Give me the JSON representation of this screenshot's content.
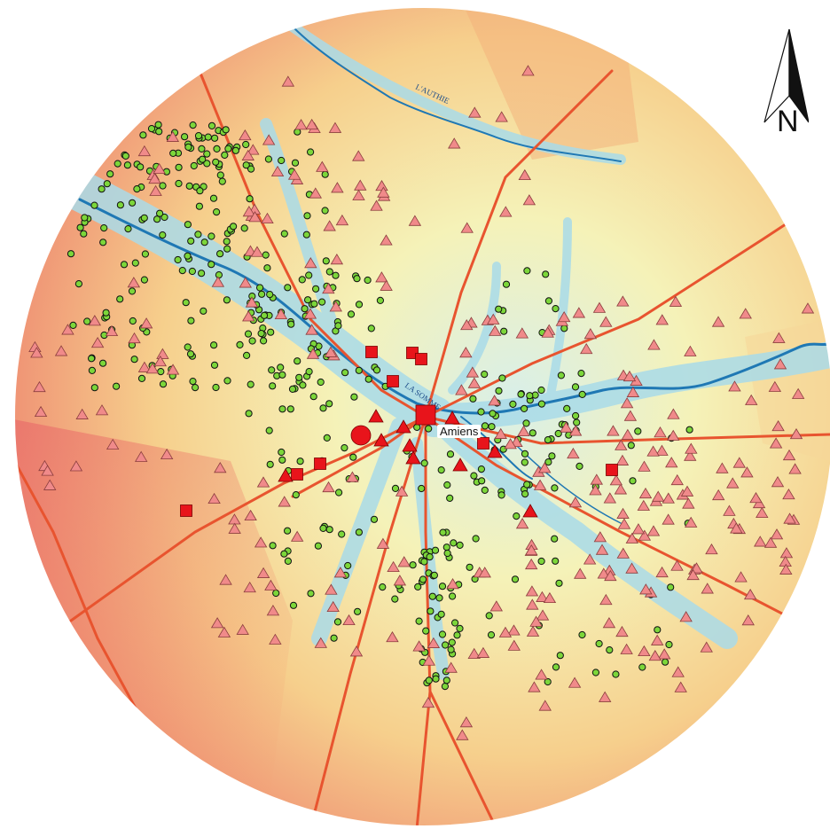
{
  "map": {
    "city_label": "Amiens",
    "river_labels": [
      "L'AUTHIE",
      "LA SOMME"
    ],
    "north_label": "N"
  },
  "colors": {
    "relief_low": "#bfe3ee",
    "relief_mid": "#f6f0b4",
    "relief_high": "#f29a6e",
    "relief_peak": "#e36a6a",
    "river": "#1f78b4",
    "road": "#e8542f",
    "green_site": "#7cd63a",
    "pink_site": "#f08a8a",
    "red_site": "#e8141b"
  },
  "legend_icons": [
    "green-circle-site-icon",
    "pink-triangle-site-icon",
    "red-square-site-icon",
    "red-triangle-site-icon",
    "red-circle-site-icon"
  ]
}
